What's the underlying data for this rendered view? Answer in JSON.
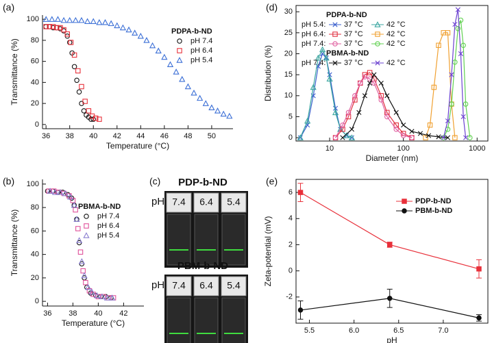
{
  "chart_data": [
    {
      "type": "scatter",
      "label": "(a)",
      "xlabel": "Temperature (°C)",
      "ylabel": "Transmittance (%)",
      "legend_title": "PDPA-b-ND",
      "xlim": [
        35.7,
        51.8
      ],
      "xticks": [
        36,
        38,
        40,
        42,
        44,
        46,
        48,
        50
      ],
      "ylim": [
        -4,
        104
      ],
      "yticks": [
        0,
        20,
        40,
        60,
        80,
        100
      ],
      "series": [
        {
          "name": "pH 7.4",
          "color": "#111111",
          "marker": "circle",
          "x": [
            36,
            36.3,
            36.6,
            36.9,
            37.2,
            37.5,
            37.8,
            38.0,
            38.2,
            38.4,
            38.6,
            38.8,
            39.0,
            39.2,
            39.4,
            39.6,
            39.8,
            40.0
          ],
          "values": [
            93,
            93,
            92,
            92,
            91,
            89,
            84,
            78,
            68,
            55,
            42,
            31,
            20,
            13,
            9,
            7,
            5,
            5
          ]
        },
        {
          "name": "pH 6.4",
          "color": "#e8303a",
          "marker": "square",
          "x": [
            36,
            36.3,
            36.6,
            36.9,
            37.2,
            37.5,
            37.8,
            38.1,
            38.4,
            38.7,
            39.0,
            39.3,
            39.6,
            39.9,
            40.2,
            40.5
          ],
          "values": [
            93,
            93,
            93,
            92,
            92,
            90,
            86,
            78,
            66,
            51,
            36,
            22,
            13,
            8,
            6,
            5
          ]
        },
        {
          "name": "pH 5.4",
          "color": "#3b6fd6",
          "marker": "triangle",
          "x": [
            36,
            36.5,
            37,
            37.5,
            38,
            38.5,
            39,
            39.5,
            40,
            40.5,
            41,
            41.5,
            42,
            42.5,
            43,
            43.5,
            44,
            44.5,
            45,
            45.5,
            46,
            46.5,
            47,
            47.5,
            48,
            48.5,
            49,
            49.5,
            50,
            50.5,
            51,
            51.5
          ],
          "values": [
            100,
            100,
            100,
            99,
            99,
            99,
            99,
            98,
            98,
            97,
            97,
            96,
            94,
            92,
            90,
            87,
            84,
            80,
            75,
            70,
            64,
            57,
            50,
            43,
            36,
            30,
            25,
            20,
            16,
            13,
            10,
            8
          ]
        }
      ]
    },
    {
      "type": "scatter",
      "label": "(b)",
      "xlabel": "Temperature (°C)",
      "ylabel": "Transmittance (%)",
      "legend_title": "PBMA-b-ND",
      "xlim": [
        35.6,
        43.6
      ],
      "xticks": [
        36,
        38,
        40,
        42
      ],
      "ylim": [
        -4,
        104
      ],
      "yticks": [
        0,
        20,
        40,
        60,
        80,
        100
      ],
      "series": [
        {
          "name": "pH 7.4",
          "color": "#111111",
          "marker": "circle",
          "x": [
            36,
            36.4,
            36.8,
            37.2,
            37.6,
            37.9,
            38.1,
            38.3,
            38.5,
            38.7,
            38.9,
            39.1,
            39.4,
            39.8,
            40.2,
            40.6,
            41.0
          ],
          "values": [
            94,
            94,
            93,
            93,
            91,
            88,
            82,
            70,
            50,
            32,
            20,
            12,
            7,
            5,
            4,
            4,
            3
          ]
        },
        {
          "name": "pH 6.4",
          "color": "#e0509a",
          "marker": "square",
          "x": [
            36.1,
            36.5,
            36.9,
            37.3,
            37.7,
            38.0,
            38.2,
            38.4,
            38.6,
            38.8,
            39.0,
            39.3,
            39.6,
            40.0,
            40.4,
            40.8,
            41.2
          ],
          "values": [
            94,
            94,
            93,
            92,
            90,
            86,
            78,
            62,
            42,
            26,
            16,
            9,
            6,
            4,
            4,
            3,
            3
          ]
        },
        {
          "name": "pH 5.4",
          "color": "#8a7fd0",
          "marker": "triangle",
          "x": [
            36.2,
            36.6,
            37.0,
            37.4,
            37.8,
            38.1,
            38.3,
            38.5,
            38.7,
            38.9,
            39.2,
            39.5,
            39.9,
            40.3,
            40.7,
            41.1
          ],
          "values": [
            94,
            93,
            93,
            92,
            89,
            82,
            70,
            52,
            34,
            22,
            12,
            8,
            5,
            4,
            3,
            3
          ]
        }
      ]
    },
    {
      "type": "line",
      "label": "(d)",
      "xlabel": "Diameter (nm)",
      "ylabel": "Distribution (%)",
      "xlog": true,
      "box": true,
      "xlim": [
        3.5,
        1400
      ],
      "xticks": [
        10,
        100,
        1000
      ],
      "ylim": [
        -0.8,
        31.5
      ],
      "yticks": [
        0,
        5,
        10,
        15,
        20,
        25,
        30
      ],
      "legend_groups": [
        {
          "title": "PDPA-b-ND",
          "rows": [
            "pH 5.4:",
            "pH 6.4:",
            "pH 7.4:"
          ]
        },
        {
          "title": "PBMA-b-ND",
          "rows": [
            "pH 7.4:"
          ]
        }
      ],
      "series": [
        {
          "name": "37 °C",
          "color": "#3a5fcd",
          "marker": "cross",
          "x": [
            4,
            5,
            6,
            7,
            8,
            9,
            10,
            12,
            14,
            17,
            20
          ],
          "values": [
            0,
            3,
            10,
            17,
            20,
            19,
            15,
            7,
            2,
            0.5,
            0
          ]
        },
        {
          "name": "42 °C",
          "color": "#3aa6a0",
          "marker": "triangle",
          "x": [
            4,
            5,
            6,
            7,
            8,
            9,
            10,
            12,
            14,
            17,
            20
          ],
          "values": [
            0,
            4,
            12,
            19,
            21,
            19,
            14,
            6,
            2,
            0.5,
            0
          ]
        },
        {
          "name": "37 °C",
          "color": "#e03040",
          "marker": "square",
          "x": [
            12,
            15,
            18,
            22,
            26,
            30,
            35,
            40,
            50,
            60,
            80,
            100,
            130
          ],
          "values": [
            0,
            2,
            5,
            9,
            13,
            15,
            15.5,
            14,
            10,
            6,
            3,
            1,
            0
          ]
        },
        {
          "name": "42 °C",
          "color": "#f0a030",
          "marker": "square",
          "x": [
            200,
            230,
            260,
            300,
            350,
            400,
            450,
            500
          ],
          "values": [
            0,
            3,
            12,
            22,
            25,
            25,
            8,
            0
          ]
        },
        {
          "name": "37 °C",
          "color": "#e060a0",
          "marker": "circle",
          "x": [
            12,
            15,
            18,
            22,
            26,
            30,
            35,
            40,
            50,
            60,
            80,
            100,
            130
          ],
          "values": [
            0,
            3,
            6,
            10,
            13,
            14.5,
            14,
            13,
            9,
            5,
            2,
            0.5,
            0
          ]
        },
        {
          "name": "42 °C",
          "color": "#60d050",
          "marker": "circle",
          "x": [
            350,
            400,
            450,
            500,
            550,
            600,
            650,
            700,
            800
          ],
          "values": [
            0,
            2,
            8,
            18,
            26,
            28,
            22,
            8,
            0
          ]
        },
        {
          "name": "37 °C",
          "color": "#111111",
          "marker": "cross",
          "x": [
            15,
            20,
            25,
            30,
            35,
            40,
            50,
            60,
            80,
            100,
            130,
            170,
            220,
            300,
            400
          ],
          "values": [
            0,
            2,
            6,
            10,
            13,
            15,
            13,
            10,
            6,
            3,
            1.5,
            1,
            0.5,
            0.2,
            0
          ]
        },
        {
          "name": "42 °C",
          "color": "#6a40d0",
          "marker": "cross",
          "x": [
            350,
            400,
            450,
            500,
            550,
            600,
            650,
            700
          ],
          "values": [
            0,
            4,
            15,
            27,
            30.5,
            20,
            5,
            0
          ]
        }
      ]
    },
    {
      "type": "errorline",
      "label": "(e)",
      "xlabel": "pH",
      "ylabel": "Zeta-potential (mV)",
      "box": true,
      "xlim": [
        5.35,
        7.5
      ],
      "xticks": [
        5.5,
        {
          "value": 6,
          "label": "6.0"
        },
        6.5,
        {
          "value": 7,
          "label": "7.0"
        }
      ],
      "ylim": [
        -4,
        7
      ],
      "yticks": [
        -2,
        0,
        2,
        4,
        6
      ],
      "series": [
        {
          "name": "PDP-b-ND",
          "color": "#e8303a",
          "marker": "square",
          "filled": true,
          "x": [
            5.4,
            6.4,
            7.4
          ],
          "values": [
            6.0,
            2.0,
            0.15
          ],
          "errors": [
            0.7,
            0.2,
            0.7
          ]
        },
        {
          "name": "PBM-b-ND",
          "color": "#111111",
          "marker": "circle",
          "filled": true,
          "x": [
            5.4,
            6.4,
            7.4
          ],
          "values": [
            -3.0,
            -2.1,
            -3.6
          ],
          "errors": [
            0.7,
            0.7,
            0.25
          ]
        }
      ]
    }
  ],
  "photo_panel": {
    "label": "(c)",
    "rows": [
      {
        "title": "PDP-b-ND",
        "ph_label": "pH",
        "ph_values": [
          "7.4",
          "6.4",
          "5.4"
        ]
      },
      {
        "title": "PBM-b-ND",
        "ph_label": "pH",
        "ph_values": [
          "7.4",
          "6.4",
          "5.4"
        ]
      }
    ]
  }
}
